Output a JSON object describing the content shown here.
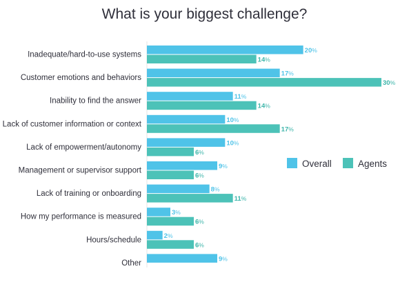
{
  "chart_data": {
    "type": "bar",
    "orientation": "horizontal",
    "title": "What is your biggest challenge?",
    "categories": [
      "Inadequate/hard-to-use systems",
      "Customer emotions and behaviors",
      "Inability to find the answer",
      "Lack of customer information or context",
      "Lack of empowerment/autonomy",
      "Management or supervisor support",
      "Lack of training or onboarding",
      "How my performance is measured",
      "Hours/schedule",
      "Other"
    ],
    "series": [
      {
        "name": "Overall",
        "color": "#4fc3e8",
        "values": [
          20,
          17,
          11,
          10,
          10,
          9,
          8,
          3,
          2,
          9
        ]
      },
      {
        "name": "Agents",
        "color": "#4cc2b8",
        "values": [
          14,
          30,
          14,
          17,
          6,
          6,
          11,
          6,
          6,
          null
        ]
      }
    ],
    "value_suffix": "%",
    "xlim": [
      0,
      30
    ],
    "grid": false,
    "legend_position": "right"
  }
}
